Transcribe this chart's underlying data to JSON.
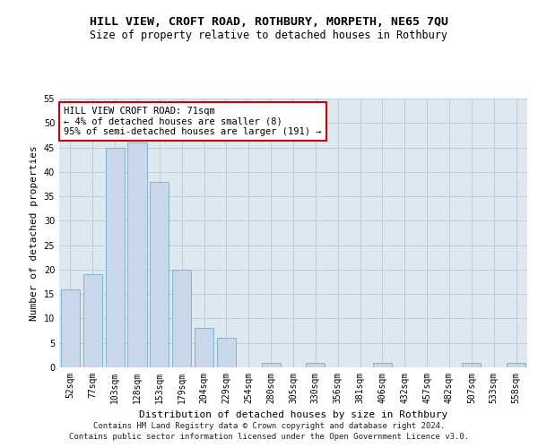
{
  "title": "HILL VIEW, CROFT ROAD, ROTHBURY, MORPETH, NE65 7QU",
  "subtitle": "Size of property relative to detached houses in Rothbury",
  "xlabel": "Distribution of detached houses by size in Rothbury",
  "ylabel": "Number of detached properties",
  "categories": [
    "52sqm",
    "77sqm",
    "103sqm",
    "128sqm",
    "153sqm",
    "179sqm",
    "204sqm",
    "229sqm",
    "254sqm",
    "280sqm",
    "305sqm",
    "330sqm",
    "356sqm",
    "381sqm",
    "406sqm",
    "432sqm",
    "457sqm",
    "482sqm",
    "507sqm",
    "533sqm",
    "558sqm"
  ],
  "values": [
    16,
    19,
    45,
    46,
    38,
    20,
    8,
    6,
    0,
    1,
    0,
    1,
    0,
    0,
    1,
    0,
    0,
    0,
    1,
    0,
    1
  ],
  "bar_color": "#c8d8ea",
  "bar_edge_color": "#7aaac8",
  "annotation_text": "HILL VIEW CROFT ROAD: 71sqm\n← 4% of detached houses are smaller (8)\n95% of semi-detached houses are larger (191) →",
  "annotation_box_color": "#ffffff",
  "annotation_box_edge": "#cc0000",
  "ylim": [
    0,
    55
  ],
  "yticks": [
    0,
    5,
    10,
    15,
    20,
    25,
    30,
    35,
    40,
    45,
    50,
    55
  ],
  "grid_color": "#b8c8d8",
  "background_color": "#dde8f0",
  "footer_line1": "Contains HM Land Registry data © Crown copyright and database right 2024.",
  "footer_line2": "Contains public sector information licensed under the Open Government Licence v3.0.",
  "title_fontsize": 9.5,
  "subtitle_fontsize": 8.5,
  "xlabel_fontsize": 8,
  "ylabel_fontsize": 8,
  "tick_fontsize": 7,
  "annotation_fontsize": 7.5,
  "footer_fontsize": 6.5
}
